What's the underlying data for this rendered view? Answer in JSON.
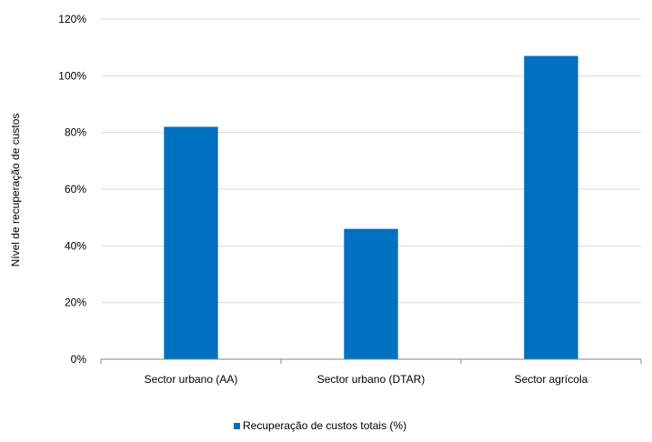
{
  "chart_data": {
    "type": "bar",
    "title": "",
    "xlabel": "",
    "ylabel": "Nível de recuperação de custos",
    "categories": [
      "Sector urbano (AA)",
      "Sector urbano (DTAR)",
      "Sector agrícola"
    ],
    "series": [
      {
        "name": "Recuperação de custos totais (%)",
        "values": [
          82,
          46,
          107
        ],
        "color": "#0070C0"
      }
    ],
    "ylim": [
      0,
      120
    ],
    "y_ticks": [
      0,
      20,
      40,
      60,
      80,
      100,
      120
    ],
    "y_tick_labels": [
      "0%",
      "20%",
      "40%",
      "60%",
      "80%",
      "100%",
      "120%"
    ],
    "grid": true,
    "legend_position": "bottom"
  }
}
